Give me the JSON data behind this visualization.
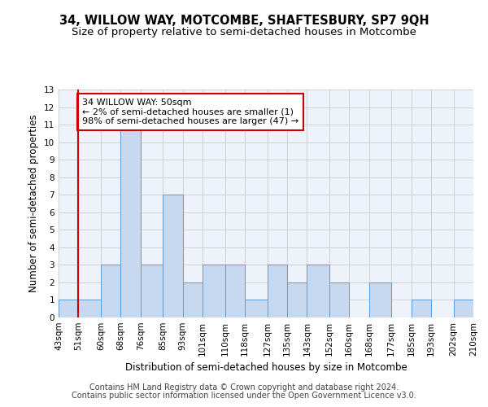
{
  "title": "34, WILLOW WAY, MOTCOMBE, SHAFTESBURY, SP7 9QH",
  "subtitle": "Size of property relative to semi-detached houses in Motcombe",
  "xlabel": "Distribution of semi-detached houses by size in Motcombe",
  "ylabel": "Number of semi-detached properties",
  "bin_edges": [
    43,
    51,
    60,
    68,
    76,
    85,
    93,
    101,
    110,
    118,
    127,
    135,
    143,
    152,
    160,
    168,
    177,
    185,
    193,
    202,
    210
  ],
  "counts": [
    1,
    1,
    3,
    11,
    3,
    7,
    2,
    3,
    3,
    1,
    3,
    2,
    3,
    2,
    0,
    2,
    0,
    1,
    0,
    1
  ],
  "bar_color": "#c6d9f0",
  "bar_edge_color": "#5b9bd5",
  "grid_color": "#d0d0d0",
  "bg_color": "#eef3fb",
  "annotation_text": "34 WILLOW WAY: 50sqm\n← 2% of semi-detached houses are smaller (1)\n98% of semi-detached houses are larger (47) →",
  "annotation_box_color": "#ffffff",
  "annotation_border_color": "#cc0000",
  "vline_color": "#cc0000",
  "vline_x": 51,
  "footnote1": "Contains HM Land Registry data © Crown copyright and database right 2024.",
  "footnote2": "Contains public sector information licensed under the Open Government Licence v3.0.",
  "title_fontsize": 10.5,
  "subtitle_fontsize": 9.5,
  "label_fontsize": 8.5,
  "tick_fontsize": 7.5,
  "annotation_fontsize": 8,
  "footnote_fontsize": 7,
  "ylim": [
    0,
    13
  ]
}
